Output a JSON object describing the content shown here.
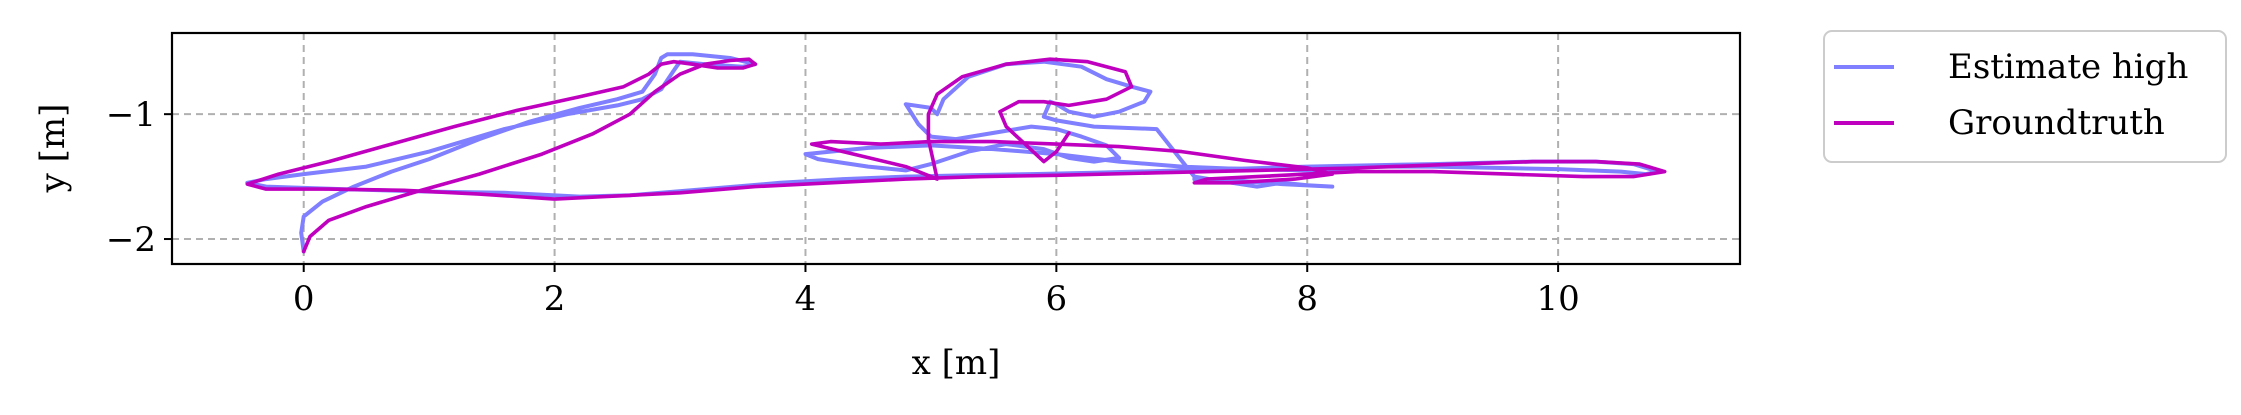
{
  "chart_data": {
    "type": "line",
    "xlabel": "x [m]",
    "ylabel": "y [m]",
    "xlim": [
      -1.05,
      11.45
    ],
    "ylim": [
      -2.2,
      -0.35
    ],
    "xticks": [
      0,
      2,
      4,
      6,
      8,
      10
    ],
    "yticks": [
      -1,
      -2
    ],
    "xtick_labels": [
      "0",
      "2",
      "4",
      "6",
      "8",
      "10"
    ],
    "ytick_labels": [
      "−1",
      "−2"
    ],
    "grid": true,
    "legend_position": "outside-right-top",
    "series": [
      {
        "name": "Estimate high",
        "color": "#7f7fff",
        "x": [
          0.0,
          -0.02,
          0.0,
          0.15,
          0.4,
          0.7,
          1.0,
          1.4,
          1.8,
          2.2,
          2.5,
          2.7,
          2.8,
          2.85,
          2.9,
          3.1,
          3.4,
          3.6,
          3.5,
          3.2,
          3.0,
          2.95,
          2.85,
          2.7,
          2.5,
          2.1,
          1.6,
          1.0,
          0.5,
          0.0,
          -0.3,
          -0.45,
          -0.3,
          0.3,
          1.0,
          1.6,
          2.2,
          2.6,
          3.2,
          3.8,
          4.3,
          4.8,
          5.3,
          5.8,
          6.3,
          7.0,
          8.0,
          9.0,
          9.8,
          10.3,
          10.6,
          10.8,
          10.7,
          10.5,
          10.0,
          9.5,
          9.0,
          8.5,
          8.2,
          8.0,
          7.5,
          7.0,
          6.5,
          6.0,
          5.5,
          5.0,
          4.5,
          4.2,
          4.0,
          4.1,
          4.5,
          4.8,
          5.0,
          5.3,
          5.6,
          5.9,
          6.1,
          6.3,
          6.5,
          6.4,
          6.2,
          6.0,
          5.8,
          5.5,
          5.2,
          5.0,
          4.9,
          4.8,
          5.0,
          5.05,
          5.1,
          5.3,
          5.6,
          5.9,
          6.2,
          6.4,
          6.6,
          6.75,
          6.7,
          6.5,
          6.3,
          6.1,
          6.0,
          5.95,
          5.9,
          6.0,
          6.3,
          6.8,
          7.1,
          7.4,
          7.6,
          7.8,
          8.0,
          8.2,
          7.8,
          7.3,
          7.1
        ],
        "y": [
          -2.1,
          -1.95,
          -1.82,
          -1.7,
          -1.58,
          -1.46,
          -1.36,
          -1.2,
          -1.06,
          -0.95,
          -0.88,
          -0.82,
          -0.68,
          -0.55,
          -0.52,
          -0.52,
          -0.55,
          -0.6,
          -0.62,
          -0.6,
          -0.58,
          -0.65,
          -0.8,
          -0.88,
          -0.93,
          -1.0,
          -1.12,
          -1.3,
          -1.42,
          -1.48,
          -1.52,
          -1.55,
          -1.58,
          -1.6,
          -1.62,
          -1.63,
          -1.66,
          -1.65,
          -1.6,
          -1.55,
          -1.52,
          -1.5,
          -1.49,
          -1.48,
          -1.47,
          -1.45,
          -1.42,
          -1.4,
          -1.38,
          -1.38,
          -1.4,
          -1.46,
          -1.48,
          -1.46,
          -1.44,
          -1.43,
          -1.42,
          -1.42,
          -1.45,
          -1.45,
          -1.44,
          -1.42,
          -1.38,
          -1.32,
          -1.28,
          -1.25,
          -1.27,
          -1.3,
          -1.32,
          -1.36,
          -1.42,
          -1.45,
          -1.4,
          -1.3,
          -1.24,
          -1.28,
          -1.35,
          -1.38,
          -1.35,
          -1.25,
          -1.18,
          -1.12,
          -1.1,
          -1.15,
          -1.2,
          -1.18,
          -1.08,
          -0.92,
          -0.95,
          -1.0,
          -0.88,
          -0.7,
          -0.6,
          -0.58,
          -0.62,
          -0.72,
          -0.78,
          -0.82,
          -0.9,
          -0.98,
          -1.02,
          -0.98,
          -0.92,
          -0.9,
          -1.02,
          -1.05,
          -1.1,
          -1.12,
          -1.5,
          -1.55,
          -1.58,
          -1.55,
          -1.57,
          -1.58,
          -1.56,
          -1.52,
          -1.52
        ]
      },
      {
        "name": "Groundtruth",
        "color": "#bf00bf",
        "x": [
          0.0,
          0.05,
          0.2,
          0.5,
          0.9,
          1.4,
          1.9,
          2.3,
          2.6,
          2.8,
          3.0,
          3.2,
          3.4,
          3.55,
          3.6,
          3.5,
          3.3,
          3.1,
          2.95,
          2.85,
          2.75,
          2.55,
          2.2,
          1.7,
          1.2,
          0.7,
          0.2,
          -0.2,
          -0.45,
          -0.3,
          0.2,
          0.8,
          1.4,
          2.0,
          2.4,
          3.0,
          3.6,
          4.2,
          4.8,
          5.4,
          6.0,
          6.8,
          7.6,
          8.4,
          9.2,
          9.8,
          10.3,
          10.65,
          10.85,
          10.6,
          10.2,
          9.6,
          9.0,
          8.4,
          8.0,
          7.6,
          7.2,
          7.1,
          7.4,
          7.9,
          8.2,
          8.0,
          7.5,
          7.0,
          6.5,
          6.0,
          5.5,
          5.0,
          4.6,
          4.2,
          4.05,
          4.3,
          4.8,
          5.05,
          5.02,
          4.98,
          4.98,
          5.05,
          5.25,
          5.6,
          5.95,
          6.25,
          6.55,
          6.6,
          6.4,
          6.1,
          5.9,
          5.7,
          5.55,
          5.6,
          5.75,
          5.9,
          6.0,
          6.1
        ],
        "y": [
          -2.1,
          -1.98,
          -1.85,
          -1.74,
          -1.62,
          -1.48,
          -1.32,
          -1.16,
          -1.0,
          -0.82,
          -0.68,
          -0.6,
          -0.57,
          -0.56,
          -0.6,
          -0.63,
          -0.63,
          -0.6,
          -0.58,
          -0.6,
          -0.68,
          -0.78,
          -0.86,
          -0.97,
          -1.1,
          -1.24,
          -1.38,
          -1.48,
          -1.56,
          -1.6,
          -1.6,
          -1.61,
          -1.64,
          -1.68,
          -1.66,
          -1.63,
          -1.58,
          -1.55,
          -1.52,
          -1.5,
          -1.49,
          -1.47,
          -1.45,
          -1.43,
          -1.4,
          -1.38,
          -1.38,
          -1.4,
          -1.46,
          -1.5,
          -1.5,
          -1.48,
          -1.46,
          -1.46,
          -1.48,
          -1.5,
          -1.52,
          -1.55,
          -1.55,
          -1.52,
          -1.48,
          -1.43,
          -1.37,
          -1.3,
          -1.26,
          -1.24,
          -1.22,
          -1.22,
          -1.24,
          -1.22,
          -1.24,
          -1.3,
          -1.42,
          -1.52,
          -1.38,
          -1.2,
          -1.0,
          -0.84,
          -0.7,
          -0.6,
          -0.56,
          -0.58,
          -0.66,
          -0.78,
          -0.88,
          -0.93,
          -0.9,
          -0.9,
          -0.98,
          -1.1,
          -1.24,
          -1.38,
          -1.3,
          -1.15
        ]
      }
    ]
  }
}
